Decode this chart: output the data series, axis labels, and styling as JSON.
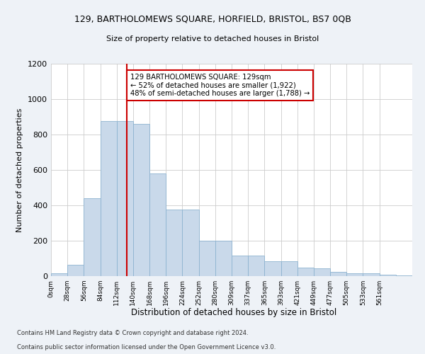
{
  "title": "129, BARTHOLOMEWS SQUARE, HORFIELD, BRISTOL, BS7 0QB",
  "subtitle": "Size of property relative to detached houses in Bristol",
  "xlabel": "Distribution of detached houses by size in Bristol",
  "ylabel": "Number of detached properties",
  "bar_heights": [
    15,
    65,
    440,
    875,
    875,
    860,
    580,
    375,
    375,
    200,
    200,
    115,
    115,
    85,
    85,
    50,
    45,
    25,
    15,
    15,
    10,
    5
  ],
  "bin_edges": [
    0,
    28,
    56,
    84,
    112,
    140,
    168,
    196,
    224,
    252,
    280,
    308,
    336,
    364,
    392,
    420,
    448,
    476,
    504,
    532,
    560,
    588
  ],
  "bin_width": 28,
  "bar_color": "#c9d9ea",
  "bar_edgecolor": "#8db3d0",
  "vline_x": 129,
  "vline_color": "#cc0000",
  "annotation_text": "129 BARTHOLOMEWS SQUARE: 129sqm\n← 52% of detached houses are smaller (1,922)\n48% of semi-detached houses are larger (1,788) →",
  "annotation_box_edgecolor": "#cc0000",
  "ylim": [
    0,
    1200
  ],
  "yticks": [
    0,
    200,
    400,
    600,
    800,
    1000,
    1200
  ],
  "xtick_labels": [
    "0sqm",
    "28sqm",
    "56sqm",
    "84sqm",
    "112sqm",
    "140sqm",
    "168sqm",
    "196sqm",
    "224sqm",
    "252sqm",
    "280sqm",
    "309sqm",
    "337sqm",
    "365sqm",
    "393sqm",
    "421sqm",
    "449sqm",
    "477sqm",
    "505sqm",
    "533sqm",
    "561sqm"
  ],
  "footnote1": "Contains HM Land Registry data © Crown copyright and database right 2024.",
  "footnote2": "Contains public sector information licensed under the Open Government Licence v3.0.",
  "bg_color": "#eef2f7",
  "plot_bg_color": "#ffffff",
  "grid_color": "#cccccc"
}
